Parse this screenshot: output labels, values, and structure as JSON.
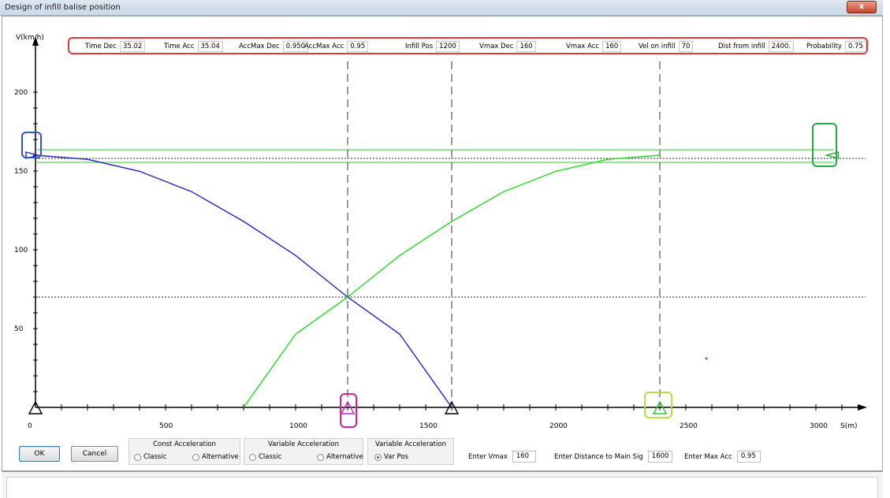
{
  "window": {
    "title": "Design of infill balise position",
    "close_glyph": "x"
  },
  "params": [
    {
      "label": "Time Dec",
      "value": "35.02"
    },
    {
      "label": "Time Acc",
      "value": "35.04"
    },
    {
      "label": "AccMax Dec",
      "value": "0.950"
    },
    {
      "label": "AccMax Acc",
      "value": "0.95"
    },
    {
      "label": "Infill Pos",
      "value": "1200"
    },
    {
      "label": "Vmax Dec",
      "value": "160"
    },
    {
      "label": "Vmax Acc",
      "value": "160"
    },
    {
      "label": "Vel on infill",
      "value": "70"
    },
    {
      "label": "Dist from infill",
      "value": "2400."
    },
    {
      "label": "Probability",
      "value": "0.75"
    }
  ],
  "chart_data": {
    "type": "line",
    "xlabel": "S(m)",
    "ylabel": "V(km/h)",
    "xlim": [
      0,
      3100
    ],
    "ylim": [
      0,
      210
    ],
    "x_ticks": [
      0,
      500,
      1000,
      1500,
      2000,
      2500,
      3000
    ],
    "y_ticks": [
      50,
      100,
      150,
      200
    ],
    "series": [
      {
        "color": "#2222cc",
        "x": [
          0,
          200,
          400,
          600,
          800,
          1000,
          1200,
          1400,
          1600
        ],
        "y": [
          160,
          157.4,
          149.8,
          136.9,
          118.0,
          96.4,
          70,
          46.5,
          0
        ]
      },
      {
        "color": "#22dd22",
        "x": [
          800,
          1000,
          1200,
          1400,
          1600,
          1800,
          2000,
          2200,
          2400
        ],
        "y": [
          0,
          46.5,
          70,
          96.4,
          118.0,
          136.9,
          149.8,
          157.4,
          160
        ]
      }
    ],
    "vertical_dashed_lines": [
      1200,
      1600,
      2400
    ],
    "horizontal_dotted_lines": [
      70,
      158
    ],
    "markers": [
      {
        "type": "triangle-up",
        "x": 0,
        "y": 0,
        "color": "#000000"
      },
      {
        "type": "triangle-up",
        "x": 1200,
        "y": 0,
        "color": "#cc22cc"
      },
      {
        "type": "triangle-up",
        "x": 1600,
        "y": 0,
        "color": "#000000"
      },
      {
        "type": "triangle-up",
        "x": 2400,
        "y": 0,
        "color": "#22cc22"
      },
      {
        "type": "triangle-right",
        "x": 0,
        "y": 160,
        "color": "#2222cc"
      },
      {
        "type": "triangle-left",
        "x": 3050,
        "y": 160,
        "color": "#22aa22"
      }
    ],
    "highlights": [
      {
        "at": "x=0, y=160",
        "color": "#3355cc"
      },
      {
        "at": "x=1200, y=0",
        "color": "#e0208a"
      },
      {
        "at": "x=2400, y=0",
        "color": "#b8e040"
      },
      {
        "at": "x=3050, y=160",
        "color": "#22aa44"
      }
    ]
  },
  "buttons": {
    "ok": "OK",
    "cancel": "Cancel"
  },
  "groups": [
    {
      "title": "Const Acceleration",
      "options": [
        {
          "label": "Classic",
          "selected": false
        },
        {
          "label": "Alternative",
          "selected": false
        }
      ]
    },
    {
      "title": "Variable Acceleration",
      "options": [
        {
          "label": "Classic",
          "selected": false
        },
        {
          "label": "Alternative",
          "selected": false
        }
      ]
    },
    {
      "title": "Variable Acceleration",
      "options": [
        {
          "label": "Var Pos",
          "selected": true
        }
      ]
    }
  ],
  "inputs": [
    {
      "label": "Enter Vmax",
      "value": "160"
    },
    {
      "label": "Enter Distance to Main Sig",
      "value": "1600"
    },
    {
      "label": "Enter Max Acc",
      "value": "0.95"
    }
  ]
}
